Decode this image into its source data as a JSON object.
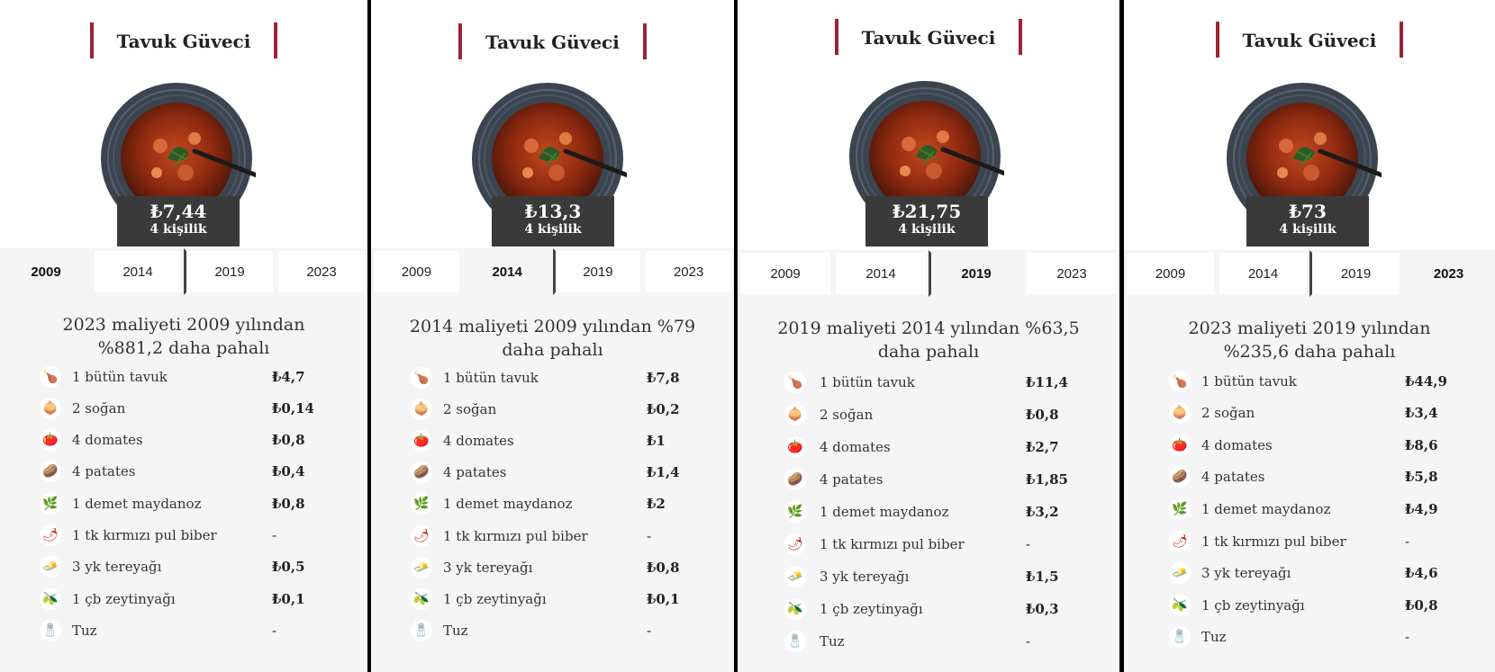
{
  "panels": [
    {
      "title": "Tavuk Güveci",
      "price": "₺7,44",
      "serves": "4 kişilik",
      "tabs": [
        "2009",
        "2014",
        "2019",
        "2023"
      ],
      "active_tab": 0,
      "comparison_line1": "2023 maliyeti 2009 yılından",
      "comparison_line2": "%881,2 daha pahalı",
      "ingredients": [
        {
          "name": "1 bütün tavuk",
          "value": "₺4,7",
          "icon": "chicken-icon"
        },
        {
          "name": "2 soğan",
          "value": "₺0,14",
          "icon": "onion-icon"
        },
        {
          "name": "4 domates",
          "value": "₺0,8",
          "icon": "tomato-icon"
        },
        {
          "name": "4 patates",
          "value": "₺0,4",
          "icon": "potato-icon"
        },
        {
          "name": "1 demet maydanoz",
          "value": "₺0,8",
          "icon": "parsley-icon"
        },
        {
          "name": "1 tk kırmızı pul biber",
          "value": "-",
          "icon": "chili-icon"
        },
        {
          "name": "3 yk tereyağı",
          "value": "₺0,5",
          "icon": "butter-icon"
        },
        {
          "name": "1 çb zeytinyağı",
          "value": "₺0,1",
          "icon": "olive-oil-icon"
        },
        {
          "name": "Tuz",
          "value": "-",
          "icon": "salt-icon"
        }
      ]
    },
    {
      "title": "Tavuk Güveci",
      "price": "₺13,3",
      "serves": "4 kişilik",
      "tabs": [
        "2009",
        "2014",
        "2019",
        "2023"
      ],
      "active_tab": 1,
      "comparison_line1": "2014 maliyeti 2009 yılından %79",
      "comparison_line2": "daha pahalı",
      "ingredients": [
        {
          "name": "1 bütün tavuk",
          "value": "₺7,8",
          "icon": "chicken-icon"
        },
        {
          "name": "2 soğan",
          "value": "₺0,2",
          "icon": "onion-icon"
        },
        {
          "name": "4 domates",
          "value": "₺1",
          "icon": "tomato-icon"
        },
        {
          "name": "4 patates",
          "value": "₺1,4",
          "icon": "potato-icon"
        },
        {
          "name": "1 demet maydanoz",
          "value": "₺2",
          "icon": "parsley-icon"
        },
        {
          "name": "1 tk kırmızı pul biber",
          "value": "-",
          "icon": "chili-icon"
        },
        {
          "name": "3 yk tereyağı",
          "value": "₺0,8",
          "icon": "butter-icon"
        },
        {
          "name": "1 çb zeytinyağı",
          "value": "₺0,1",
          "icon": "olive-oil-icon"
        },
        {
          "name": "Tuz",
          "value": "-",
          "icon": "salt-icon"
        }
      ]
    },
    {
      "title": "Tavuk Güveci",
      "price": "₺21,75",
      "serves": "4 kişilik",
      "tabs": [
        "2009",
        "2014",
        "2019",
        "2023"
      ],
      "active_tab": 2,
      "comparison_line1": "2019 maliyeti 2014 yılından %63,5",
      "comparison_line2": "daha pahalı",
      "ingredients": [
        {
          "name": "1 bütün tavuk",
          "value": "₺11,4",
          "icon": "chicken-icon"
        },
        {
          "name": "2 soğan",
          "value": "₺0,8",
          "icon": "onion-icon"
        },
        {
          "name": "4 domates",
          "value": "₺2,7",
          "icon": "tomato-icon"
        },
        {
          "name": "4 patates",
          "value": "₺1,85",
          "icon": "potato-icon"
        },
        {
          "name": "1 demet maydanoz",
          "value": "₺3,2",
          "icon": "parsley-icon"
        },
        {
          "name": "1 tk kırmızı pul biber",
          "value": "-",
          "icon": "chili-icon"
        },
        {
          "name": "3 yk tereyağı",
          "value": "₺1,5",
          "icon": "butter-icon"
        },
        {
          "name": "1 çb zeytinyağı",
          "value": "₺0,3",
          "icon": "olive-oil-icon"
        },
        {
          "name": "Tuz",
          "value": "-",
          "icon": "salt-icon"
        }
      ]
    },
    {
      "title": "Tavuk Güveci",
      "price": "₺73",
      "serves": "4 kişilik",
      "tabs": [
        "2009",
        "2014",
        "2019",
        "2023"
      ],
      "active_tab": 3,
      "comparison_line1": "2023 maliyeti 2019 yılından",
      "comparison_line2": "%235,6 daha pahalı",
      "ingredients": [
        {
          "name": "1 bütün tavuk",
          "value": "₺44,9",
          "icon": "chicken-icon"
        },
        {
          "name": "2 soğan",
          "value": "₺3,4",
          "icon": "onion-icon"
        },
        {
          "name": "4 domates",
          "value": "₺8,6",
          "icon": "tomato-icon"
        },
        {
          "name": "4 patates",
          "value": "₺5,8",
          "icon": "potato-icon"
        },
        {
          "name": "1 demet maydanoz",
          "value": "₺4,9",
          "icon": "parsley-icon"
        },
        {
          "name": "1 tk kırmızı pul biber",
          "value": "-",
          "icon": "chili-icon"
        },
        {
          "name": "3 yk tereyağı",
          "value": "₺4,6",
          "icon": "butter-icon"
        },
        {
          "name": "1 çb zeytinyağı",
          "value": "₺0,8",
          "icon": "olive-oil-icon"
        },
        {
          "name": "Tuz",
          "value": "-",
          "icon": "salt-icon"
        }
      ]
    }
  ],
  "colors": {
    "accent": "#9b2335",
    "price_bg": "#3a3a3a",
    "panel_bg": "#f5f5f5"
  }
}
